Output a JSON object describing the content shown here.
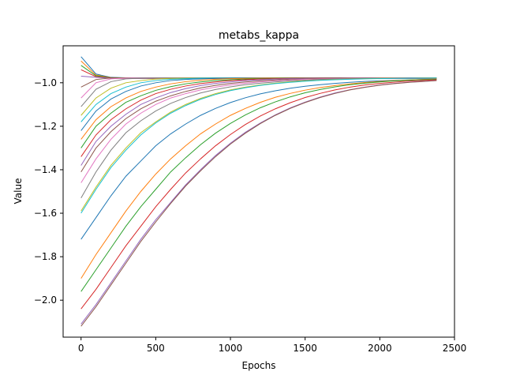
{
  "chart_data": {
    "type": "line",
    "title": "metabs_kappa",
    "xlabel": "Epochs",
    "ylabel": "Value",
    "xlim": [
      -120,
      2500
    ],
    "ylim": [
      -2.17,
      -0.83
    ],
    "xticks": [
      0,
      500,
      1000,
      1500,
      2000,
      2500
    ],
    "yticks": [
      -2.0,
      -1.8,
      -1.6,
      -1.4,
      -1.2,
      -1.0
    ],
    "xtick_labels": [
      "0",
      "500",
      "1000",
      "1500",
      "2000",
      "2500"
    ],
    "ytick_labels": [
      "−2.0",
      "−1.8",
      "−1.6",
      "−1.4",
      "−1.2",
      "−1.0"
    ],
    "grid": false,
    "legend": "none",
    "color_cycle": [
      "#1f77b4",
      "#ff7f0e",
      "#2ca02c",
      "#d62728",
      "#9467bd",
      "#8c564b",
      "#e377c2",
      "#7f7f7f",
      "#bcbd22",
      "#17becf"
    ],
    "x": [
      0,
      100,
      200,
      300,
      400,
      500,
      600,
      700,
      800,
      900,
      1000,
      1100,
      1200,
      1300,
      1400,
      1500,
      1600,
      1700,
      1800,
      1900,
      2000,
      2100,
      2200,
      2300,
      2380
    ],
    "series": [
      {
        "values": [
          -0.88,
          -0.96,
          -0.975,
          -0.977,
          -0.978,
          -0.978,
          -0.978,
          -0.978,
          -0.978,
          -0.978,
          -0.978,
          -0.978,
          -0.978,
          -0.978,
          -0.978,
          -0.978,
          -0.978,
          -0.978,
          -0.978,
          -0.978,
          -0.978,
          -0.978,
          -0.978,
          -0.978,
          -0.978
        ]
      },
      {
        "values": [
          -0.9,
          -0.965,
          -0.976,
          -0.978,
          -0.979,
          -0.979,
          -0.979,
          -0.979,
          -0.979,
          -0.979,
          -0.979,
          -0.979,
          -0.979,
          -0.979,
          -0.979,
          -0.979,
          -0.979,
          -0.979,
          -0.979,
          -0.979,
          -0.979,
          -0.979,
          -0.979,
          -0.979,
          -0.979
        ]
      },
      {
        "values": [
          -0.92,
          -0.968,
          -0.977,
          -0.979,
          -0.98,
          -0.98,
          -0.98,
          -0.98,
          -0.98,
          -0.98,
          -0.98,
          -0.98,
          -0.98,
          -0.98,
          -0.98,
          -0.98,
          -0.98,
          -0.98,
          -0.98,
          -0.98,
          -0.98,
          -0.98,
          -0.98,
          -0.98,
          -0.98
        ]
      },
      {
        "values": [
          -0.94,
          -0.972,
          -0.978,
          -0.98,
          -0.98,
          -0.98,
          -0.98,
          -0.98,
          -0.98,
          -0.98,
          -0.98,
          -0.98,
          -0.98,
          -0.98,
          -0.98,
          -0.98,
          -0.98,
          -0.98,
          -0.98,
          -0.98,
          -0.98,
          -0.98,
          -0.98,
          -0.98,
          -0.98
        ]
      },
      {
        "values": [
          -0.97,
          -0.975,
          -0.979,
          -0.98,
          -0.98,
          -0.98,
          -0.98,
          -0.98,
          -0.98,
          -0.98,
          -0.98,
          -0.98,
          -0.98,
          -0.98,
          -0.98,
          -0.98,
          -0.98,
          -0.98,
          -0.98,
          -0.98,
          -0.98,
          -0.98,
          -0.98,
          -0.98,
          -0.98
        ]
      },
      {
        "values": [
          -1.02,
          -0.985,
          -0.978,
          -0.978,
          -0.978,
          -0.978,
          -0.978,
          -0.978,
          -0.978,
          -0.978,
          -0.978,
          -0.978,
          -0.978,
          -0.978,
          -0.978,
          -0.978,
          -0.978,
          -0.978,
          -0.978,
          -0.978,
          -0.978,
          -0.978,
          -0.978,
          -0.978,
          -0.978
        ]
      },
      {
        "values": [
          -1.07,
          -1.0,
          -0.982,
          -0.979,
          -0.978,
          -0.978,
          -0.978,
          -0.978,
          -0.978,
          -0.978,
          -0.978,
          -0.978,
          -0.978,
          -0.978,
          -0.978,
          -0.978,
          -0.978,
          -0.978,
          -0.978,
          -0.978,
          -0.978,
          -0.978,
          -0.978,
          -0.978,
          -0.978
        ]
      },
      {
        "values": [
          -1.11,
          -1.03,
          -0.995,
          -0.982,
          -0.979,
          -0.978,
          -0.978,
          -0.978,
          -0.978,
          -0.978,
          -0.978,
          -0.978,
          -0.978,
          -0.978,
          -0.978,
          -0.978,
          -0.978,
          -0.978,
          -0.978,
          -0.978,
          -0.978,
          -0.978,
          -0.978,
          -0.978,
          -0.978
        ]
      },
      {
        "values": [
          -1.15,
          -1.07,
          -1.025,
          -1.0,
          -0.99,
          -0.983,
          -0.98,
          -0.979,
          -0.978,
          -0.978,
          -0.978,
          -0.978,
          -0.978,
          -0.978,
          -0.978,
          -0.978,
          -0.978,
          -0.978,
          -0.978,
          -0.978,
          -0.978,
          -0.978,
          -0.978,
          -0.978,
          -0.978
        ]
      },
      {
        "values": [
          -1.18,
          -1.1,
          -1.05,
          -1.02,
          -1.0,
          -0.99,
          -0.984,
          -0.981,
          -0.979,
          -0.978,
          -0.978,
          -0.978,
          -0.978,
          -0.978,
          -0.978,
          -0.978,
          -0.978,
          -0.978,
          -0.978,
          -0.978,
          -0.978,
          -0.978,
          -0.978,
          -0.978,
          -0.978
        ]
      },
      {
        "values": [
          -1.22,
          -1.13,
          -1.075,
          -1.04,
          -1.015,
          -1.0,
          -0.99,
          -0.985,
          -0.982,
          -0.98,
          -0.979,
          -0.978,
          -0.978,
          -0.978,
          -0.978,
          -0.978,
          -0.978,
          -0.978,
          -0.978,
          -0.978,
          -0.978,
          -0.978,
          -0.978,
          -0.978,
          -0.978
        ]
      },
      {
        "values": [
          -1.26,
          -1.17,
          -1.11,
          -1.07,
          -1.04,
          -1.02,
          -1.005,
          -0.995,
          -0.988,
          -0.984,
          -0.981,
          -0.98,
          -0.979,
          -0.978,
          -0.978,
          -0.978,
          -0.978,
          -0.978,
          -0.978,
          -0.978,
          -0.978,
          -0.978,
          -0.978,
          -0.978,
          -0.978
        ]
      },
      {
        "values": [
          -1.3,
          -1.2,
          -1.14,
          -1.09,
          -1.06,
          -1.035,
          -1.018,
          -1.005,
          -0.996,
          -0.99,
          -0.986,
          -0.983,
          -0.981,
          -0.98,
          -0.979,
          -0.978,
          -0.978,
          -0.978,
          -0.978,
          -0.978,
          -0.978,
          -0.978,
          -0.978,
          -0.978,
          -0.978
        ]
      },
      {
        "values": [
          -1.34,
          -1.24,
          -1.17,
          -1.12,
          -1.08,
          -1.05,
          -1.03,
          -1.015,
          -1.004,
          -0.996,
          -0.99,
          -0.986,
          -0.983,
          -0.981,
          -0.98,
          -0.979,
          -0.978,
          -0.978,
          -0.978,
          -0.978,
          -0.978,
          -0.978,
          -0.978,
          -0.978,
          -0.978
        ]
      },
      {
        "values": [
          -1.38,
          -1.27,
          -1.2,
          -1.145,
          -1.1,
          -1.07,
          -1.045,
          -1.027,
          -1.013,
          -1.003,
          -0.996,
          -0.99,
          -0.986,
          -0.983,
          -0.981,
          -0.98,
          -0.979,
          -0.978,
          -0.978,
          -0.978,
          -0.978,
          -0.978,
          -0.978,
          -0.978,
          -0.978
        ]
      },
      {
        "values": [
          -1.41,
          -1.3,
          -1.225,
          -1.165,
          -1.12,
          -1.085,
          -1.06,
          -1.04,
          -1.024,
          -1.012,
          -1.003,
          -0.996,
          -0.991,
          -0.987,
          -0.984,
          -0.982,
          -0.98,
          -0.979,
          -0.979,
          -0.978,
          -0.978,
          -0.978,
          -0.978,
          -0.978,
          -0.978
        ]
      },
      {
        "values": [
          -1.46,
          -1.35,
          -1.26,
          -1.19,
          -1.14,
          -1.1,
          -1.07,
          -1.05,
          -1.033,
          -1.02,
          -1.01,
          -1.002,
          -0.996,
          -0.991,
          -0.987,
          -0.984,
          -0.982,
          -0.981,
          -0.98,
          -0.979,
          -0.978,
          -0.978,
          -0.978,
          -0.978,
          -0.978
        ]
      },
      {
        "values": [
          -1.53,
          -1.41,
          -1.31,
          -1.23,
          -1.175,
          -1.13,
          -1.095,
          -1.068,
          -1.047,
          -1.031,
          -1.019,
          -1.009,
          -1.002,
          -0.996,
          -0.991,
          -0.988,
          -0.985,
          -0.983,
          -0.981,
          -0.98,
          -0.979,
          -0.979,
          -0.978,
          -0.978,
          -0.978
        ]
      },
      {
        "values": [
          -1.59,
          -1.48,
          -1.38,
          -1.3,
          -1.23,
          -1.18,
          -1.135,
          -1.1,
          -1.072,
          -1.05,
          -1.033,
          -1.02,
          -1.01,
          -1.002,
          -0.996,
          -0.991,
          -0.988,
          -0.985,
          -0.983,
          -0.981,
          -0.98,
          -0.979,
          -0.979,
          -0.978,
          -0.978
        ]
      },
      {
        "values": [
          -1.6,
          -1.49,
          -1.39,
          -1.31,
          -1.24,
          -1.185,
          -1.14,
          -1.105,
          -1.076,
          -1.054,
          -1.036,
          -1.023,
          -1.012,
          -1.004,
          -0.998,
          -0.993,
          -0.989,
          -0.986,
          -0.984,
          -0.982,
          -0.981,
          -0.98,
          -0.979,
          -0.979,
          -0.978
        ]
      },
      {
        "values": [
          -1.72,
          -1.62,
          -1.52,
          -1.43,
          -1.36,
          -1.29,
          -1.235,
          -1.19,
          -1.15,
          -1.118,
          -1.091,
          -1.069,
          -1.051,
          -1.037,
          -1.025,
          -1.016,
          -1.009,
          -1.003,
          -0.998,
          -0.994,
          -0.991,
          -0.989,
          -0.987,
          -0.985,
          -0.984
        ]
      },
      {
        "values": [
          -1.9,
          -1.79,
          -1.69,
          -1.59,
          -1.5,
          -1.42,
          -1.35,
          -1.29,
          -1.235,
          -1.19,
          -1.15,
          -1.118,
          -1.09,
          -1.067,
          -1.049,
          -1.034,
          -1.022,
          -1.013,
          -1.005,
          -0.999,
          -0.994,
          -0.99,
          -0.987,
          -0.985,
          -0.983
        ]
      },
      {
        "values": [
          -1.96,
          -1.86,
          -1.76,
          -1.66,
          -1.57,
          -1.49,
          -1.41,
          -1.345,
          -1.285,
          -1.232,
          -1.187,
          -1.148,
          -1.115,
          -1.088,
          -1.065,
          -1.046,
          -1.031,
          -1.019,
          -1.009,
          -1.002,
          -0.996,
          -0.991,
          -0.988,
          -0.986,
          -0.984
        ]
      },
      {
        "values": [
          -2.04,
          -1.95,
          -1.85,
          -1.75,
          -1.66,
          -1.57,
          -1.49,
          -1.415,
          -1.35,
          -1.29,
          -1.238,
          -1.192,
          -1.153,
          -1.12,
          -1.092,
          -1.068,
          -1.049,
          -1.033,
          -1.02,
          -1.01,
          -1.003,
          -0.997,
          -0.992,
          -0.989,
          -0.986
        ]
      },
      {
        "values": [
          -2.11,
          -2.02,
          -1.92,
          -1.82,
          -1.72,
          -1.63,
          -1.55,
          -1.47,
          -1.4,
          -1.335,
          -1.278,
          -1.228,
          -1.185,
          -1.148,
          -1.116,
          -1.089,
          -1.066,
          -1.047,
          -1.032,
          -1.02,
          -1.01,
          -1.003,
          -0.997,
          -0.993,
          -0.99
        ]
      },
      {
        "values": [
          -2.12,
          -2.03,
          -1.93,
          -1.83,
          -1.73,
          -1.64,
          -1.555,
          -1.475,
          -1.405,
          -1.34,
          -1.282,
          -1.232,
          -1.188,
          -1.15,
          -1.118,
          -1.091,
          -1.068,
          -1.049,
          -1.033,
          -1.021,
          -1.011,
          -1.004,
          -0.998,
          -0.994,
          -0.99
        ]
      }
    ]
  }
}
